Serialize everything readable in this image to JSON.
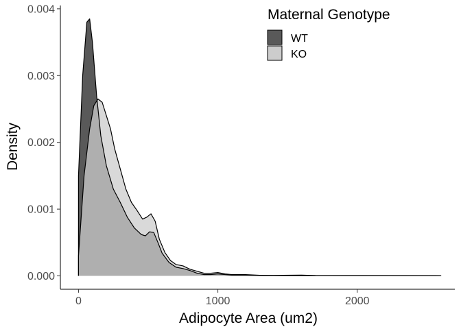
{
  "chart_data": {
    "type": "area",
    "title": "",
    "xlabel": "Adipocyte Area (um2)",
    "ylabel": "Density",
    "xlim": [
      -130,
      2700
    ],
    "ylim": [
      -0.0002,
      0.00405
    ],
    "x_ticks": [
      0,
      1000,
      2000
    ],
    "x_tick_labels": [
      "0",
      "1000",
      "2000"
    ],
    "y_ticks": [
      0,
      0.001,
      0.002,
      0.003,
      0.004
    ],
    "y_tick_labels": [
      "0.000",
      "0.001",
      "0.002",
      "0.003",
      "0.004"
    ],
    "grid": false,
    "legend": {
      "title": "Maternal Genotype",
      "placement": "top-right",
      "entries": [
        "WT",
        "KO"
      ]
    },
    "series": [
      {
        "name": "WT",
        "fill": "#595959",
        "points": [
          [
            0,
            0.0015
          ],
          [
            30,
            0.003
          ],
          [
            60,
            0.0038
          ],
          [
            80,
            0.00385
          ],
          [
            100,
            0.0035
          ],
          [
            130,
            0.0027
          ],
          [
            160,
            0.0021
          ],
          [
            200,
            0.00165
          ],
          [
            250,
            0.0013
          ],
          [
            300,
            0.0011
          ],
          [
            350,
            0.00088
          ],
          [
            400,
            0.00072
          ],
          [
            450,
            0.00062
          ],
          [
            480,
            0.0006
          ],
          [
            510,
            0.00066
          ],
          [
            540,
            0.00065
          ],
          [
            570,
            0.0005
          ],
          [
            600,
            0.00034
          ],
          [
            650,
            0.0002
          ],
          [
            700,
            0.00013
          ],
          [
            750,
            0.00011
          ],
          [
            800,
            8e-05
          ],
          [
            850,
            4e-05
          ],
          [
            900,
            2e-05
          ],
          [
            950,
            2e-05
          ],
          [
            1000,
            3e-05
          ],
          [
            1050,
            2e-05
          ],
          [
            1100,
            1e-05
          ],
          [
            1200,
            1e-05
          ],
          [
            1300,
            5e-06
          ],
          [
            1500,
            4e-06
          ],
          [
            1700,
            3e-06
          ],
          [
            2000,
            2e-06
          ],
          [
            2300,
            2e-06
          ],
          [
            2600,
            1e-06
          ]
        ]
      },
      {
        "name": "KO",
        "fill": "#cccccc",
        "points": [
          [
            0,
            0.0003
          ],
          [
            40,
            0.0015
          ],
          [
            80,
            0.0022
          ],
          [
            110,
            0.00255
          ],
          [
            140,
            0.00265
          ],
          [
            170,
            0.0026
          ],
          [
            200,
            0.0024
          ],
          [
            230,
            0.0022
          ],
          [
            260,
            0.0019
          ],
          [
            300,
            0.0016
          ],
          [
            340,
            0.0013
          ],
          [
            380,
            0.0011
          ],
          [
            420,
            0.00098
          ],
          [
            460,
            0.00085
          ],
          [
            490,
            0.00088
          ],
          [
            520,
            0.00093
          ],
          [
            550,
            0.00082
          ],
          [
            580,
            0.00055
          ],
          [
            620,
            0.00035
          ],
          [
            660,
            0.00023
          ],
          [
            700,
            0.00017
          ],
          [
            750,
            0.00015
          ],
          [
            800,
            0.0001
          ],
          [
            850,
            7e-05
          ],
          [
            900,
            4e-05
          ],
          [
            950,
            4e-05
          ],
          [
            1000,
            5e-05
          ],
          [
            1050,
            3e-05
          ],
          [
            1100,
            2e-05
          ],
          [
            1200,
            2e-05
          ],
          [
            1300,
            1e-05
          ],
          [
            1400,
            8e-06
          ],
          [
            1600,
            1.2e-05
          ],
          [
            1700,
            6e-06
          ],
          [
            2000,
            4e-06
          ],
          [
            2300,
            3e-06
          ],
          [
            2600,
            2e-06
          ]
        ]
      }
    ]
  }
}
